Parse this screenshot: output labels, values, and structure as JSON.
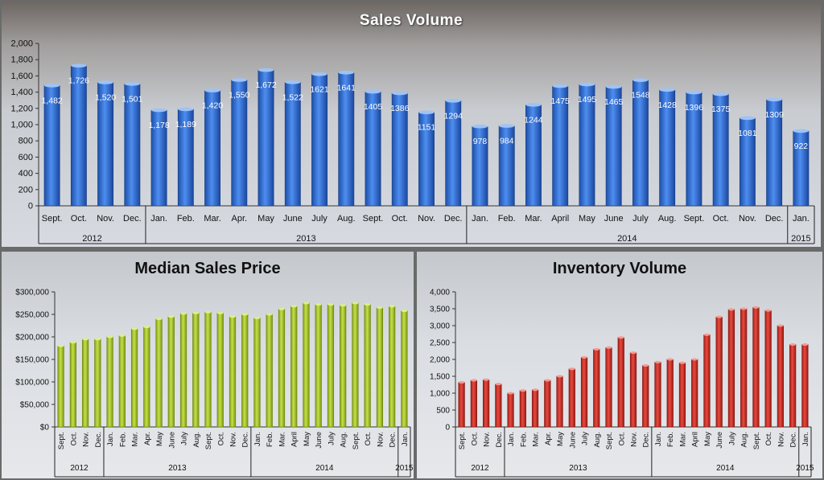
{
  "colors": {
    "sales_bar": "#2f6fd6",
    "price_bar": "#a6c82a",
    "inventory_bar": "#d8302a"
  },
  "chart_data": [
    {
      "type": "bar",
      "title": "Sales Volume",
      "categories": [
        "Sept.",
        "Oct.",
        "Nov.",
        "Dec.",
        "Jan.",
        "Feb.",
        "Mar.",
        "Apr.",
        "May",
        "June",
        "July",
        "Aug.",
        "Sept.",
        "Oct.",
        "Nov.",
        "Dec.",
        "Jan.",
        "Feb.",
        "Mar.",
        "April",
        "May",
        "June",
        "July",
        "Aug.",
        "Sept.",
        "Oct.",
        "Nov.",
        "Dec.",
        "Jan."
      ],
      "values": [
        1482,
        1726,
        1520,
        1501,
        1178,
        1189,
        1420,
        1550,
        1672,
        1522,
        1621,
        1641,
        1405,
        1386,
        1151,
        1294,
        978,
        984,
        1244,
        1475,
        1495,
        1465,
        1548,
        1428,
        1396,
        1375,
        1081,
        1309,
        922
      ],
      "data_labels": [
        "1,482",
        "1,726",
        "1,520",
        "1,501",
        "1,178",
        "1,189",
        "1,420",
        "1,550",
        "1,672",
        "1,522",
        "1621",
        "1641",
        "1405",
        "1386",
        "1151",
        "1294",
        "978",
        "984",
        "1244",
        "1475",
        "1495",
        "1465",
        "1548",
        "1428",
        "1396",
        "1375",
        "1081",
        "1309",
        "922"
      ],
      "year_groups": [
        {
          "label": "2012",
          "count": 4
        },
        {
          "label": "2013",
          "count": 12
        },
        {
          "label": "2014",
          "count": 12
        },
        {
          "label": "2015",
          "count": 1
        }
      ],
      "ylim": [
        0,
        2000
      ],
      "yticks": [
        "0",
        "200",
        "400",
        "600",
        "800",
        "1,000",
        "1,200",
        "1,400",
        "1,600",
        "1,800",
        "2,000"
      ],
      "grid": false
    },
    {
      "type": "bar",
      "title": "Median Sales Price",
      "categories": [
        "Sept.",
        "Oct.",
        "Nov.",
        "Dec.",
        "Jan.",
        "Feb.",
        "Mar.",
        "Apr.",
        "May",
        "June",
        "July",
        "Aug.",
        "Sept.",
        "Oct.",
        "Nov.",
        "Dec.",
        "Jan.",
        "Feb.",
        "Mar.",
        "April",
        "May",
        "June",
        "July",
        "Aug.",
        "Sept.",
        "Oct.",
        "Nov.",
        "Dec.",
        "Jan."
      ],
      "values": [
        180000,
        188000,
        195000,
        195000,
        200000,
        203000,
        218000,
        222000,
        240000,
        245000,
        252000,
        253000,
        255000,
        253000,
        245000,
        250000,
        242000,
        250000,
        262000,
        268000,
        275000,
        272000,
        272000,
        270000,
        275000,
        272000,
        265000,
        268000,
        258000
      ],
      "year_groups": [
        {
          "label": "2012",
          "count": 4
        },
        {
          "label": "2013",
          "count": 12
        },
        {
          "label": "2014",
          "count": 12
        },
        {
          "label": "2015",
          "count": 1
        }
      ],
      "ylim": [
        0,
        300000
      ],
      "yticks": [
        "$0",
        "$50,000",
        "$100,000",
        "$150,000",
        "$200,000",
        "$250,000",
        "$300,000"
      ],
      "grid": false
    },
    {
      "type": "bar",
      "title": "Inventory Volume",
      "categories": [
        "Sept.",
        "Oct.",
        "Nov.",
        "Dec.",
        "Jan.",
        "Feb.",
        "Mar.",
        "Apr.",
        "May",
        "June",
        "July",
        "Aug.",
        "Sept.",
        "Oct.",
        "Nov.",
        "Dec.",
        "Jan.",
        "Feb.",
        "Mar.",
        "April",
        "May",
        "June",
        "July",
        "Aug.",
        "Sept.",
        "Oct.",
        "Nov.",
        "Dec.",
        "Jan."
      ],
      "values": [
        1320,
        1380,
        1400,
        1270,
        1000,
        1080,
        1100,
        1380,
        1500,
        1720,
        2060,
        2300,
        2350,
        2650,
        2200,
        1820,
        1920,
        2000,
        1900,
        2000,
        2730,
        3260,
        3480,
        3500,
        3540,
        3450,
        3000,
        2440,
        2440
      ],
      "year_groups": [
        {
          "label": "2012",
          "count": 4
        },
        {
          "label": "2013",
          "count": 12
        },
        {
          "label": "2014",
          "count": 12
        },
        {
          "label": "2015",
          "count": 1
        }
      ],
      "ylim": [
        0,
        4000
      ],
      "yticks": [
        "0",
        "500",
        "1,000",
        "1,500",
        "2,000",
        "2,500",
        "3,000",
        "3,500",
        "4,000"
      ],
      "grid": false
    }
  ]
}
